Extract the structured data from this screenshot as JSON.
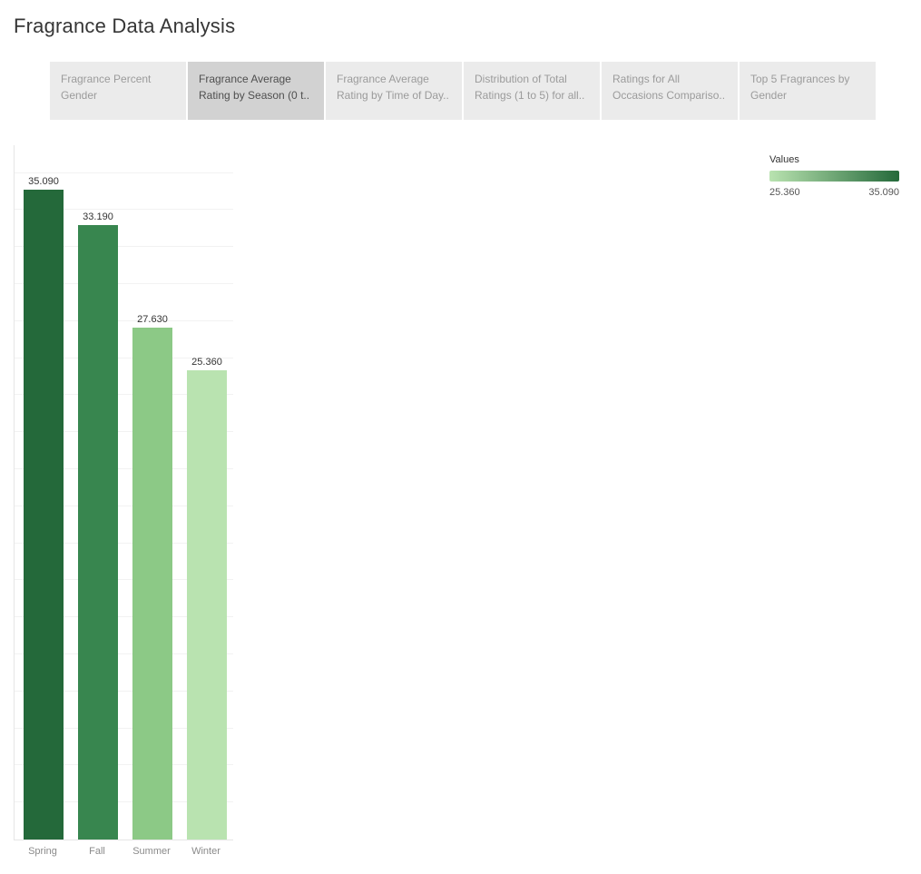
{
  "title": "Fragrance Data Analysis",
  "tabs": [
    {
      "id": "fragrance-percent-gender",
      "label": "Fragrance Percent Gender",
      "active": false
    },
    {
      "id": "avg-rating-by-season",
      "label": "Fragrance Average Rating by Season (0 t..",
      "active": true
    },
    {
      "id": "avg-rating-by-time-of-day",
      "label": "Fragrance Average Rating by Time of Day..",
      "active": false
    },
    {
      "id": "distribution-of-total-ratings",
      "label": "Distribution of Total Ratings (1 to 5) for all..",
      "active": false
    },
    {
      "id": "ratings-all-occasions-comparison",
      "label": "Ratings for All Occasions Compariso..",
      "active": false
    },
    {
      "id": "top-5-fragrances-by-gender",
      "label": "Top 5 Fragrances by Gender",
      "active": false
    }
  ],
  "legend": {
    "title": "Values",
    "min_label": "25.360",
    "max_label": "35.090",
    "min_color": "#b9e3b0",
    "max_color": "#24693a"
  },
  "chart_data": {
    "type": "bar",
    "categories": [
      "Spring",
      "Fall",
      "Summer",
      "Winter"
    ],
    "values": [
      35.09,
      33.19,
      27.63,
      25.36
    ],
    "value_labels": [
      "35.090",
      "33.190",
      "27.630",
      "25.360"
    ],
    "colors": [
      "#24693a",
      "#38864f",
      "#8cc986",
      "#b9e3b0"
    ],
    "xlabel": "",
    "ylabel": "",
    "ylim": [
      0,
      37.5
    ],
    "grid": true,
    "grid_interval": 2,
    "legend_title": "Values",
    "legend_range": [
      25.36,
      35.09
    ],
    "legend_position": "top-right"
  }
}
